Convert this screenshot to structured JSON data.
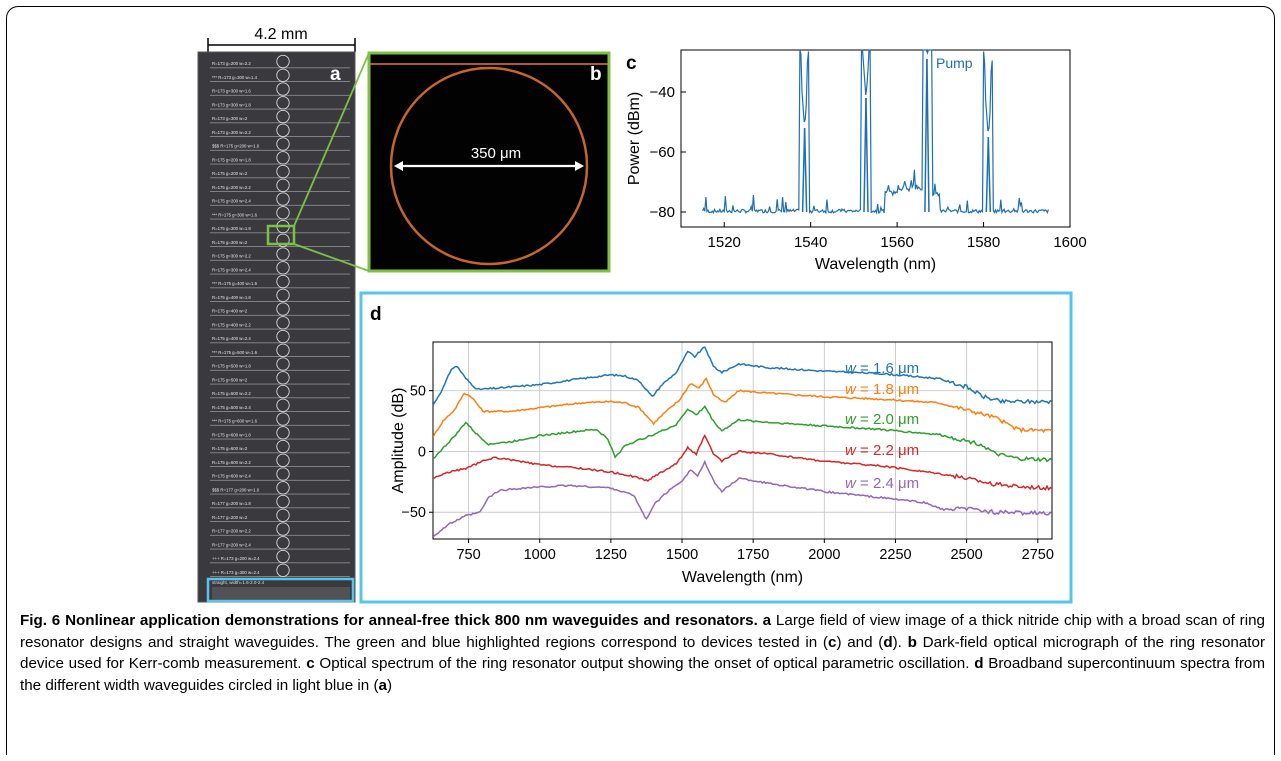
{
  "panel_a": {
    "letter": "a",
    "scale_label": "4.2 mm",
    "chip_labels": [
      "R=173 g=200 w=2.2",
      "*** R=173 g=300 w=1.4",
      "R=173 g=300 w=1.6",
      "R=173 g=300 w=1.8",
      "R=173 g=300 w=2",
      "R=173 g=300 w=2.2",
      "$$$ R=175 g=200 w=1.6",
      "R=175 g=200 w=1.8",
      "R=175 g=200 w=2",
      "R=175 g=200 w=2.2",
      "R=175 g=200 w=2.4",
      "*** R=175 g=300 w=1.6",
      "R=175 g=300 w=1.8",
      "R=175 g=300 w=2",
      "R=175 g=300 w=2.2",
      "R=175 g=300 w=2.4",
      "*** R=175 g=400 w=1.6",
      "R=175 g=400 w=1.8",
      "R=175 g=400 w=2",
      "R=175 g=400 w=2.2",
      "R=175 g=400 w=2.4",
      "*** R=175 g=500 w=1.6",
      "R=175 g=500 w=1.8",
      "R=175 g=500 w=2",
      "R=175 g=500 w=2.2",
      "R=175 g=500 w=2.4",
      "*** R=175 g=600 w=1.6",
      "R=175 g=600 w=1.8",
      "R=175 g=600 w=2",
      "R=175 g=600 w=2.2",
      "R=175 g=600 w=2.4",
      "$$$ R=177 g=200 w=1.6",
      "R=177 g=200 w=1.8",
      "R=177 g=200 w=2",
      "R=177 g=200 w=2.2",
      "R=177 g=200 w=2.4",
      "+++ R=173 g=200 w=2.4",
      "+++ R=173 g=300 w=2.4"
    ],
    "straight_label": "straight, width=1.6-2.0-2.4"
  },
  "panel_b": {
    "letter": "b",
    "scale_label": "350 μm"
  },
  "panel_c": {
    "letter": "c",
    "annotation": "Pump"
  },
  "panel_d": {
    "letter": "d",
    "labels": [
      {
        "var": "w",
        "text": " = 1.6 μm",
        "color": "#1f77b4"
      },
      {
        "var": "w",
        "text": " = 1.8 μm",
        "color": "#ff7f0e"
      },
      {
        "var": "w",
        "text": " = 2.0 μm",
        "color": "#2ca02c"
      },
      {
        "var": "w",
        "text": " = 2.2 μm",
        "color": "#d62728"
      },
      {
        "var": "w",
        "text": " = 2.4 μm",
        "color": "#9467bd"
      }
    ]
  },
  "chart_data": [
    {
      "type": "line",
      "panel": "c",
      "xlabel": "Wavelength (nm)",
      "ylabel": "Power (dBm)",
      "xlim": [
        1510,
        1600
      ],
      "ylim": [
        -85,
        -26
      ],
      "xticks": [
        1520,
        1540,
        1560,
        1580,
        1600
      ],
      "yticks": [
        -80,
        -60,
        -40
      ],
      "color": "#1f6fb4",
      "series": [
        {
          "noise_floor": -80,
          "peaks": [
            {
              "x": 1538.6,
              "y": -52
            },
            {
              "x": 1552.8,
              "y": -42
            },
            {
              "x": 1566.9,
              "y": -29
            },
            {
              "x": 1581.1,
              "y": -55
            }
          ],
          "x_range": [
            1515,
            1595
          ]
        }
      ]
    },
    {
      "type": "line",
      "panel": "d",
      "xlabel": "Wavelength (nm)",
      "ylabel": "Amplitude (dB)",
      "xlim": [
        625,
        2800
      ],
      "ylim": [
        -72,
        90
      ],
      "xticks": [
        750,
        1000,
        1250,
        1500,
        1750,
        2000,
        2250,
        2500,
        2750
      ],
      "yticks": [
        -50,
        0,
        50
      ],
      "grid": true,
      "series": [
        {
          "name": "w = 1.6 μm",
          "color": "#1f77b4",
          "points": [
            [
              625,
              38
            ],
            [
              660,
              52
            ],
            [
              690,
              68
            ],
            [
              710,
              70
            ],
            [
              740,
              60
            ],
            [
              780,
              51
            ],
            [
              850,
              52
            ],
            [
              1000,
              55
            ],
            [
              1150,
              60
            ],
            [
              1250,
              63
            ],
            [
              1300,
              62
            ],
            [
              1350,
              58
            ],
            [
              1395,
              45
            ],
            [
              1430,
              55
            ],
            [
              1480,
              65
            ],
            [
              1520,
              82
            ],
            [
              1545,
              78
            ],
            [
              1580,
              86
            ],
            [
              1610,
              70
            ],
            [
              1640,
              65
            ],
            [
              1700,
              72
            ],
            [
              1800,
              69
            ],
            [
              2000,
              66
            ],
            [
              2200,
              64
            ],
            [
              2400,
              60
            ],
            [
              2500,
              53
            ],
            [
              2560,
              45
            ],
            [
              2620,
              41
            ],
            [
              2800,
              41
            ]
          ]
        },
        {
          "name": "w = 1.8 μm",
          "color": "#ff7f0e",
          "points": [
            [
              625,
              12
            ],
            [
              660,
              25
            ],
            [
              700,
              34
            ],
            [
              735,
              48
            ],
            [
              760,
              45
            ],
            [
              800,
              33
            ],
            [
              900,
              33
            ],
            [
              1000,
              36
            ],
            [
              1150,
              40
            ],
            [
              1250,
              41
            ],
            [
              1300,
              40
            ],
            [
              1350,
              36
            ],
            [
              1400,
              23
            ],
            [
              1440,
              32
            ],
            [
              1490,
              42
            ],
            [
              1530,
              56
            ],
            [
              1560,
              52
            ],
            [
              1585,
              60
            ],
            [
              1610,
              47
            ],
            [
              1650,
              40
            ],
            [
              1700,
              50
            ],
            [
              1800,
              48
            ],
            [
              2000,
              45
            ],
            [
              2200,
              43
            ],
            [
              2400,
              40
            ],
            [
              2520,
              33
            ],
            [
              2600,
              28
            ],
            [
              2680,
              18
            ],
            [
              2800,
              17
            ]
          ]
        },
        {
          "name": "w = 2.0 μm",
          "color": "#2ca02c",
          "points": [
            [
              625,
              -6
            ],
            [
              670,
              5
            ],
            [
              710,
              15
            ],
            [
              740,
              24
            ],
            [
              775,
              15
            ],
            [
              820,
              6
            ],
            [
              900,
              8
            ],
            [
              1000,
              13
            ],
            [
              1150,
              17
            ],
            [
              1200,
              18
            ],
            [
              1240,
              10
            ],
            [
              1265,
              -5
            ],
            [
              1300,
              5
            ],
            [
              1400,
              14
            ],
            [
              1480,
              22
            ],
            [
              1520,
              35
            ],
            [
              1550,
              30
            ],
            [
              1580,
              37
            ],
            [
              1610,
              25
            ],
            [
              1640,
              17
            ],
            [
              1700,
              26
            ],
            [
              1800,
              24
            ],
            [
              2000,
              21
            ],
            [
              2200,
              18
            ],
            [
              2400,
              14
            ],
            [
              2550,
              6
            ],
            [
              2600,
              -2
            ],
            [
              2680,
              -6
            ],
            [
              2800,
              -7
            ]
          ]
        },
        {
          "name": "w = 2.2 μm",
          "color": "#d62728",
          "points": [
            [
              625,
              -22
            ],
            [
              680,
              -17
            ],
            [
              740,
              -14
            ],
            [
              800,
              -8
            ],
            [
              840,
              -5
            ],
            [
              900,
              -7
            ],
            [
              1000,
              -11
            ],
            [
              1150,
              -14
            ],
            [
              1250,
              -17
            ],
            [
              1320,
              -20
            ],
            [
              1380,
              -24
            ],
            [
              1420,
              -18
            ],
            [
              1480,
              -10
            ],
            [
              1520,
              3
            ],
            [
              1550,
              -2
            ],
            [
              1580,
              13
            ],
            [
              1610,
              -2
            ],
            [
              1640,
              -8
            ],
            [
              1700,
              0
            ],
            [
              1800,
              -2
            ],
            [
              2000,
              -8
            ],
            [
              2200,
              -12
            ],
            [
              2400,
              -18
            ],
            [
              2500,
              -22
            ],
            [
              2600,
              -27
            ],
            [
              2700,
              -29
            ],
            [
              2800,
              -30
            ]
          ]
        },
        {
          "name": "w = 2.4 μm",
          "color": "#9467bd",
          "points": [
            [
              625,
              -70
            ],
            [
              680,
              -60
            ],
            [
              740,
              -53
            ],
            [
              790,
              -50
            ],
            [
              820,
              -38
            ],
            [
              860,
              -32
            ],
            [
              950,
              -30
            ],
            [
              1100,
              -28
            ],
            [
              1250,
              -30
            ],
            [
              1330,
              -36
            ],
            [
              1375,
              -56
            ],
            [
              1400,
              -44
            ],
            [
              1450,
              -33
            ],
            [
              1500,
              -24
            ],
            [
              1530,
              -15
            ],
            [
              1555,
              -20
            ],
            [
              1580,
              -9
            ],
            [
              1610,
              -24
            ],
            [
              1640,
              -33
            ],
            [
              1700,
              -22
            ],
            [
              1800,
              -26
            ],
            [
              2000,
              -33
            ],
            [
              2200,
              -38
            ],
            [
              2350,
              -42
            ],
            [
              2420,
              -48
            ],
            [
              2500,
              -47
            ],
            [
              2600,
              -50
            ],
            [
              2800,
              -51
            ]
          ]
        }
      ]
    }
  ],
  "caption": {
    "fig_label": "Fig. 6",
    "title": "Nonlinear application demonstrations for anneal-free thick 800 nm waveguides and resonators.",
    "parts": [
      {
        "bold": "a",
        "text": " Large field of view image of a thick nitride chip with a broad scan of ring resonator designs and straight waveguides. The green and blue highlighted regions correspond to devices tested in ("
      },
      {
        "bold": "c",
        "text": ") and ("
      },
      {
        "bold": "d",
        "text": "). "
      },
      {
        "bold": "b",
        "text": " Dark-field optical micrograph of the ring resonator device used for Kerr-comb measurement. "
      },
      {
        "bold": "c",
        "text": " Optical spectrum of the ring resonator output showing the onset of optical parametric oscillation. "
      },
      {
        "bold": "d",
        "text": " Broadband supercontinuum spectra from the different width waveguides circled in light blue in ("
      },
      {
        "bold": "a",
        "text": ")"
      }
    ]
  }
}
